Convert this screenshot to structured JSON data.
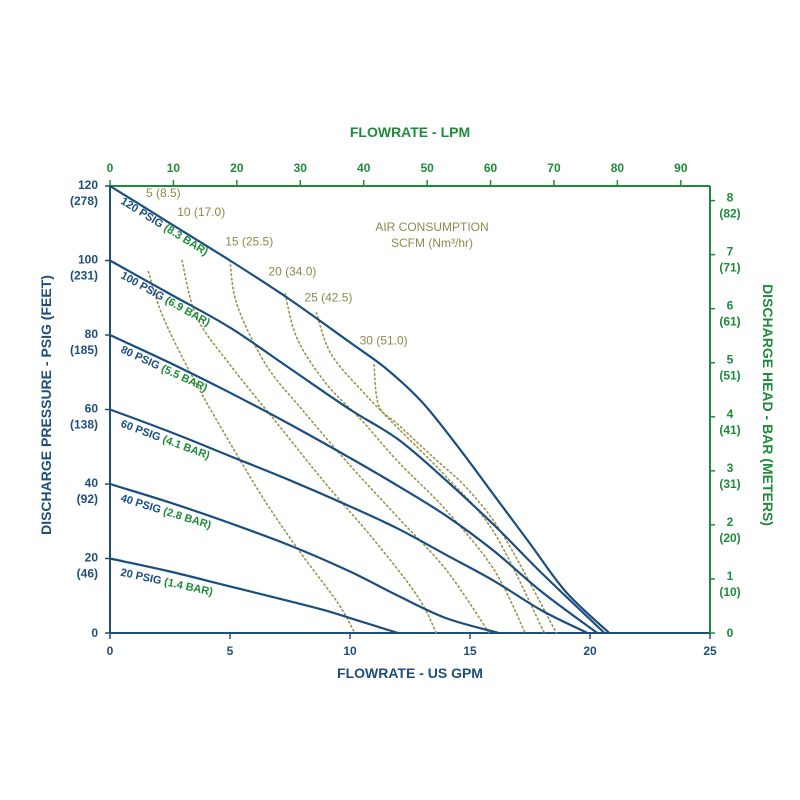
{
  "chart_data": {
    "type": "line",
    "xlabel": "FLOWRATE - US GPM",
    "x2label": "FLOWRATE - LPM",
    "ylabel": "DISCHARGE PRESSURE - PSIG (FEET)",
    "y2label": "DISCHARGE HEAD - BAR (METERS)",
    "xlim": [
      0,
      25
    ],
    "ylim": [
      0,
      120
    ],
    "x2lim": [
      0,
      94.6
    ],
    "y2lim": [
      0,
      8.27
    ],
    "x_ticks": [
      "0",
      "5",
      "10",
      "15",
      "20",
      "25"
    ],
    "x2_ticks": [
      "0",
      "10",
      "20",
      "30",
      "40",
      "50",
      "60",
      "70",
      "80",
      "90"
    ],
    "y_ticks": [
      {
        "value": 0,
        "main": "0",
        "sub": ""
      },
      {
        "value": 20,
        "main": "20",
        "sub": "(46)"
      },
      {
        "value": 40,
        "main": "40",
        "sub": "(92)"
      },
      {
        "value": 60,
        "main": "60",
        "sub": "(138)"
      },
      {
        "value": 80,
        "main": "80",
        "sub": "(185)"
      },
      {
        "value": 100,
        "main": "100",
        "sub": "(231)"
      },
      {
        "value": 120,
        "main": "120",
        "sub": "(278)"
      }
    ],
    "y2_ticks": [
      {
        "value": 0,
        "main": "0",
        "sub": ""
      },
      {
        "value": 1,
        "main": "1",
        "sub": "(10)"
      },
      {
        "value": 2,
        "main": "2",
        "sub": "(20)"
      },
      {
        "value": 3,
        "main": "3",
        "sub": "(31)"
      },
      {
        "value": 4,
        "main": "4",
        "sub": "(41)"
      },
      {
        "value": 5,
        "main": "5",
        "sub": "(51)"
      },
      {
        "value": 6,
        "main": "6",
        "sub": "(61)"
      },
      {
        "value": 7,
        "main": "7",
        "sub": "(71)"
      },
      {
        "value": 8,
        "main": "8",
        "sub": "(82)"
      }
    ],
    "air_title": [
      "AIR CONSUMPTION",
      "SCFM (Nm³/hr)"
    ],
    "series": [
      {
        "psig": "120 PSIG",
        "bar": "(8.3 BAR)",
        "x": [
          0,
          2.5,
          5,
          7.5,
          10,
          11.5,
          13,
          14.5,
          16,
          17.5,
          19,
          20.8
        ],
        "y": [
          120,
          110,
          100,
          89.5,
          78,
          71,
          62,
          50,
          37,
          24,
          11,
          0
        ]
      },
      {
        "psig": "100 PSIG",
        "bar": "(6.9 BAR)",
        "x": [
          0,
          2.5,
          5,
          7.5,
          10,
          12,
          14,
          16,
          18,
          20.6
        ],
        "y": [
          100,
          91,
          82,
          71,
          60,
          52,
          41,
          29,
          16,
          0
        ]
      },
      {
        "psig": "80 PSIG",
        "bar": "(5.5 BAR)",
        "x": [
          0,
          2.5,
          5,
          7.5,
          10,
          12,
          14,
          16,
          18,
          20.3
        ],
        "y": [
          80,
          72.5,
          64.5,
          56,
          47,
          39.5,
          31.5,
          22,
          11,
          0
        ]
      },
      {
        "psig": "60 PSIG",
        "bar": "(4.1 BAR)",
        "x": [
          0,
          2.5,
          5,
          7.5,
          10,
          12,
          14,
          16,
          18,
          19.9
        ],
        "y": [
          60,
          54,
          47.5,
          41,
          34,
          28,
          21,
          14,
          6,
          0
        ]
      },
      {
        "psig": "40 PSIG",
        "bar": "(2.8 BAR)",
        "x": [
          0,
          2.5,
          5,
          7.5,
          10,
          12,
          14,
          16.2
        ],
        "y": [
          40,
          35,
          29.5,
          23.5,
          16.5,
          10,
          4,
          0
        ]
      },
      {
        "psig": "20 PSIG",
        "bar": "(1.4 BAR)",
        "x": [
          0,
          2.5,
          5,
          7.5,
          9,
          10.5,
          12
        ],
        "y": [
          20,
          16.5,
          12.5,
          8.5,
          6,
          3,
          0
        ]
      }
    ],
    "air_consumption": [
      {
        "label": "5 (8.5)",
        "label_x": 1.5,
        "label_y": 117,
        "x": [
          1.6,
          2.2,
          3.5,
          5,
          6.5,
          8,
          9.5,
          10.2
        ],
        "y": [
          97,
          85,
          68,
          51,
          35,
          21,
          8,
          0
        ]
      },
      {
        "label": "10 (17.0)",
        "label_x": 2.8,
        "label_y": 112,
        "x": [
          3,
          3.6,
          5,
          7,
          9,
          11,
          12.8,
          13.6
        ],
        "y": [
          100,
          85,
          72,
          56,
          40,
          25,
          10,
          0
        ]
      },
      {
        "label": "15 (25.5)",
        "label_x": 4.8,
        "label_y": 104,
        "x": [
          5,
          5.3,
          6.5,
          8,
          10,
          12,
          14,
          15.8
        ],
        "y": [
          100,
          88,
          72,
          60,
          45,
          31,
          17,
          0
        ]
      },
      {
        "label": "20 (34.0)",
        "label_x": 6.6,
        "label_y": 96,
        "x": [
          7.3,
          7.8,
          9,
          10.5,
          12,
          14,
          16,
          17.3
        ],
        "y": [
          91,
          79,
          67,
          57,
          46,
          33,
          17,
          0
        ]
      },
      {
        "label": "25 (42.5)",
        "label_x": 8.1,
        "label_y": 89,
        "x": [
          8.6,
          9.2,
          10.5,
          12,
          14,
          16,
          18.1
        ],
        "y": [
          86,
          75,
          65,
          55,
          42,
          27,
          0
        ]
      },
      {
        "label": "30 (51.0)",
        "label_x": 10.4,
        "label_y": 77.5,
        "x": [
          11,
          11.2,
          12,
          13.5,
          15,
          16.5,
          18.6
        ],
        "y": [
          72,
          61,
          56,
          47,
          38,
          25,
          0
        ]
      }
    ],
    "grid": false,
    "legend": "none",
    "colors": {
      "curve": "#1a4e7f",
      "axis_left": "#1f4e79",
      "axis_right": "#1e8a3a",
      "air": "#9a9448"
    }
  }
}
